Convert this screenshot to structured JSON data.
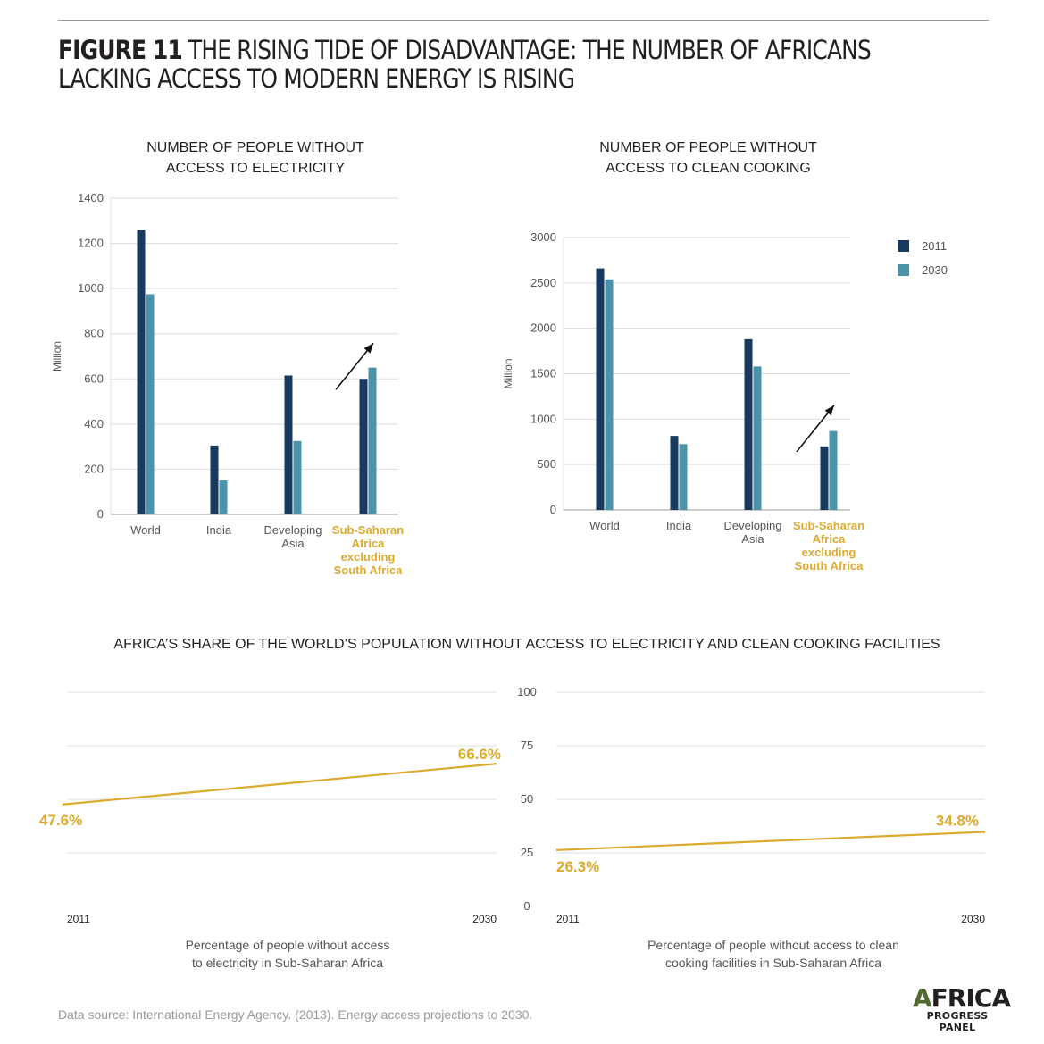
{
  "figure": {
    "number": "FIGURE 11",
    "title": "THE RISING TIDE OF DISADVANTAGE: THE NUMBER OF AFRICANS LACKING ACCESS TO MODERN ENERGY IS RISING"
  },
  "colors": {
    "series_2011": "#173a5e",
    "series_2030": "#4a93a8",
    "highlight": "#dcaa2e",
    "line": "#dcaa2e",
    "grid": "#dddddd"
  },
  "legend": [
    {
      "label": "2011",
      "color": "#173a5e"
    },
    {
      "label": "2030",
      "color": "#4a93a8"
    }
  ],
  "section_title": "AFRICA’S SHARE OF THE WORLD’S POPULATION WITHOUT ACCESS TO ELECTRICITY AND CLEAN COOKING FACILITIES",
  "captions": {
    "electricity": "Percentage of people without access\nto electricity in Sub-Saharan Africa",
    "cooking": "Percentage of people without access to clean\ncooking facilities in Sub-Saharan Africa"
  },
  "source": "Data source: International Energy Agency. (2013). Energy access projections to 2030.",
  "logo": {
    "main_a": "A",
    "main_rest": "FRICA",
    "sub": "PROGRESS PANEL"
  },
  "chart_data": [
    {
      "type": "bar",
      "title": "NUMBER OF PEOPLE WITHOUT\nACCESS TO ELECTRICITY",
      "ylabel": "Million",
      "ylim": [
        0,
        1400
      ],
      "yticks": [
        0,
        200,
        400,
        600,
        800,
        1000,
        1200,
        1400
      ],
      "categories": [
        "World",
        "India",
        "Developing\nAsia",
        "Sub-Saharan\nAfrica\nexcluding\nSouth Africa"
      ],
      "highlight_category": 3,
      "series": [
        {
          "name": "2011",
          "values": [
            1260,
            305,
            615,
            600
          ]
        },
        {
          "name": "2030",
          "values": [
            975,
            150,
            325,
            650
          ]
        }
      ],
      "annotation": "up-arrow"
    },
    {
      "type": "bar",
      "title": "NUMBER OF PEOPLE WITHOUT\nACCESS TO CLEAN COOKING",
      "ylabel": "Million",
      "ylim": [
        0,
        3000
      ],
      "yticks": [
        0,
        500,
        1000,
        1500,
        2000,
        2500,
        3000
      ],
      "categories": [
        "World",
        "India",
        "Developing\nAsia",
        "Sub-Saharan\nAfrica\nexcluding\nSouth Africa"
      ],
      "highlight_category": 3,
      "series": [
        {
          "name": "2011",
          "values": [
            2660,
            815,
            1880,
            700
          ]
        },
        {
          "name": "2030",
          "values": [
            2540,
            725,
            1580,
            870
          ]
        }
      ],
      "annotation": "up-arrow"
    },
    {
      "type": "line",
      "ylim": [
        0,
        100
      ],
      "yticks": [
        0,
        25,
        50,
        75,
        100
      ],
      "x": [
        "2011",
        "2030"
      ],
      "series": [
        {
          "values": [
            47.6,
            66.6
          ],
          "labels": [
            "47.6%",
            "66.6%"
          ]
        }
      ]
    },
    {
      "type": "line",
      "ylim": [
        0,
        100
      ],
      "yticks": [
        0,
        25,
        50,
        75,
        100
      ],
      "x": [
        "2011",
        "2030"
      ],
      "series": [
        {
          "values": [
            26.3,
            34.8
          ],
          "labels": [
            "26.3%",
            "34.8%"
          ]
        }
      ]
    }
  ]
}
